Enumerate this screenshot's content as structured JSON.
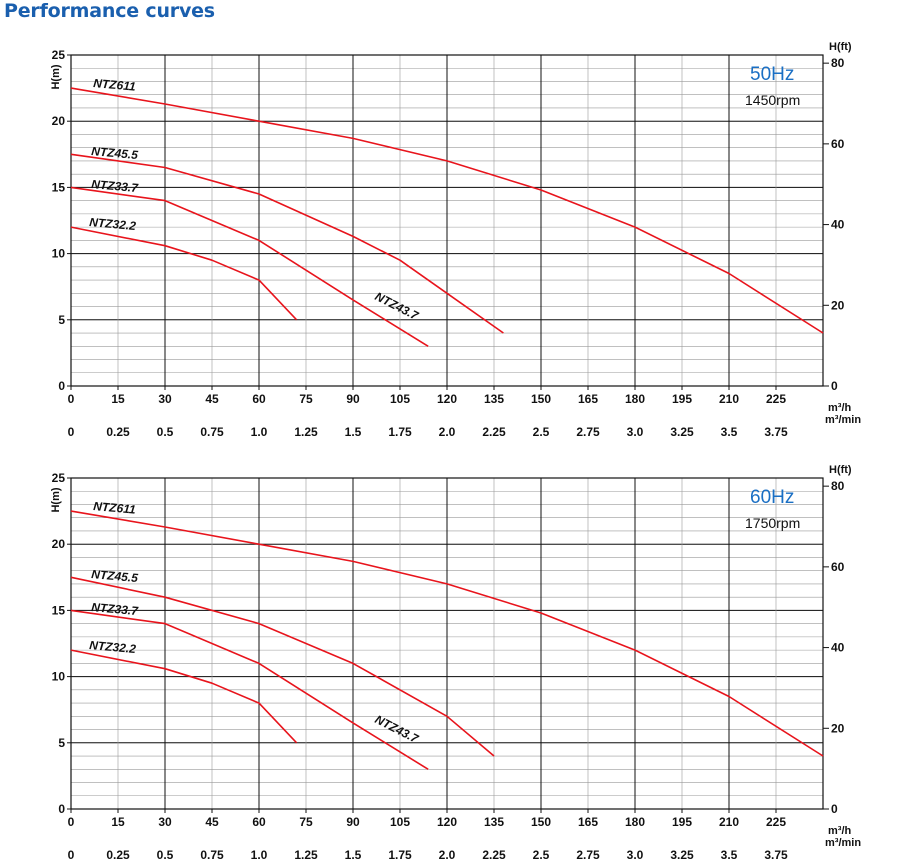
{
  "page": {
    "title": "Performance curves"
  },
  "chart_data": [
    {
      "type": "line",
      "frequency": "50Hz",
      "speed": "1450rpm",
      "ylabel_left": "H(m)",
      "ylabel_right": "H(ft)",
      "xlabel_flow_h": "m³/h",
      "xlabel_flow_min": "m³/min",
      "xlim": [
        0,
        240
      ],
      "ylim": [
        0,
        25
      ],
      "x_ticks": [
        0,
        15,
        30,
        45,
        60,
        75,
        90,
        105,
        120,
        135,
        150,
        165,
        180,
        195,
        210,
        225
      ],
      "x_ticks_min": [
        "0",
        "0.25",
        "0.5",
        "0.75",
        "1.0",
        "1.25",
        "1.5",
        "1.75",
        "2.0",
        "2.25",
        "2.5",
        "2.75",
        "3.0",
        "3.25",
        "3.5",
        "3.75"
      ],
      "y_ticks": [
        0,
        5,
        10,
        15,
        20,
        25
      ],
      "y_ticks_ft": [
        0,
        20,
        40,
        60,
        80
      ],
      "grid": true,
      "series": [
        {
          "name": "NTZ611",
          "color": "#e8141c",
          "x": [
            0,
            30,
            60,
            90,
            120,
            150,
            180,
            210,
            240
          ],
          "y": [
            22.5,
            21.3,
            20.0,
            18.7,
            17.0,
            14.8,
            12.0,
            8.5,
            4.0
          ]
        },
        {
          "name": "NTZ45.5",
          "color": "#e8141c",
          "x": [
            0,
            30,
            60,
            90,
            105,
            120,
            138
          ],
          "y": [
            17.5,
            16.5,
            14.5,
            11.3,
            9.5,
            7.0,
            4.0
          ]
        },
        {
          "name": "NTZ33.7",
          "color": "#e8141c",
          "x": [
            0,
            30,
            60,
            90,
            114
          ],
          "y": [
            15.0,
            14.0,
            11.0,
            6.5,
            3.0
          ]
        },
        {
          "name": "NTZ32.2",
          "color": "#e8141c",
          "x": [
            0,
            30,
            45,
            60,
            72
          ],
          "y": [
            12.0,
            10.6,
            9.5,
            8.0,
            5.0
          ]
        }
      ],
      "annotations": [
        {
          "text": "NTZ43.7"
        }
      ]
    },
    {
      "type": "line",
      "frequency": "60Hz",
      "speed": "1750rpm",
      "ylabel_left": "H(m)",
      "ylabel_right": "H(ft)",
      "xlabel_flow_h": "m³/h",
      "xlabel_flow_min": "m³/min",
      "xlim": [
        0,
        240
      ],
      "ylim": [
        0,
        25
      ],
      "x_ticks": [
        0,
        15,
        30,
        45,
        60,
        75,
        90,
        105,
        120,
        135,
        150,
        165,
        180,
        195,
        210,
        225
      ],
      "x_ticks_min": [
        "0",
        "0.25",
        "0.5",
        "0.75",
        "1.0",
        "1.25",
        "1.5",
        "1.75",
        "2.0",
        "2.25",
        "2.5",
        "2.75",
        "3.0",
        "3.25",
        "3.5",
        "3.75"
      ],
      "y_ticks": [
        0,
        5,
        10,
        15,
        20,
        25
      ],
      "y_ticks_ft": [
        0,
        20,
        40,
        60,
        80
      ],
      "grid": true,
      "series": [
        {
          "name": "NTZ611",
          "color": "#e8141c",
          "x": [
            0,
            30,
            60,
            90,
            120,
            150,
            180,
            210,
            240
          ],
          "y": [
            22.5,
            21.3,
            20.0,
            18.7,
            17.0,
            14.8,
            12.0,
            8.5,
            4.0
          ]
        },
        {
          "name": "NTZ45.5",
          "color": "#e8141c",
          "x": [
            0,
            30,
            60,
            90,
            120,
            135
          ],
          "y": [
            17.5,
            16.0,
            14.0,
            11.0,
            7.0,
            4.0
          ]
        },
        {
          "name": "NTZ33.7",
          "color": "#e8141c",
          "x": [
            0,
            30,
            60,
            90,
            114
          ],
          "y": [
            15.0,
            14.0,
            11.0,
            6.5,
            3.0
          ]
        },
        {
          "name": "NTZ32.2",
          "color": "#e8141c",
          "x": [
            0,
            30,
            45,
            60,
            72
          ],
          "y": [
            12.0,
            10.6,
            9.5,
            8.0,
            5.0
          ]
        }
      ],
      "annotations": [
        {
          "text": "NTZ43.7"
        }
      ]
    }
  ]
}
